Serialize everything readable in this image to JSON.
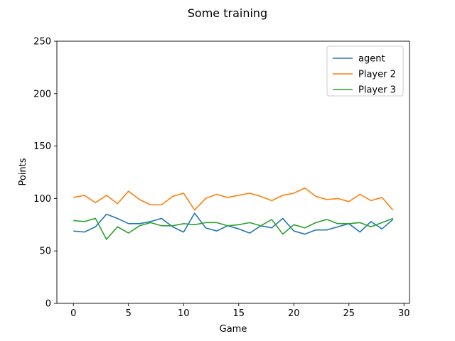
{
  "chart_data": {
    "type": "line",
    "title": "Some training",
    "xlabel": "Game",
    "ylabel": "Points",
    "x": [
      0,
      1,
      2,
      3,
      4,
      5,
      6,
      7,
      8,
      9,
      10,
      11,
      12,
      13,
      14,
      15,
      16,
      17,
      18,
      19,
      20,
      21,
      22,
      23,
      24,
      25,
      26,
      27,
      28,
      29
    ],
    "xlim": [
      -1.5,
      30.5
    ],
    "ylim": [
      0,
      250
    ],
    "xticks": [
      0,
      5,
      10,
      15,
      20,
      25,
      30
    ],
    "yticks": [
      0,
      50,
      100,
      150,
      200,
      250
    ],
    "grid": false,
    "legend_position": "top-right",
    "series": [
      {
        "name": "agent",
        "color": "#1f77b4",
        "values": [
          69,
          68,
          73,
          85,
          81,
          76,
          76,
          78,
          81,
          73,
          68,
          86,
          72,
          69,
          74,
          71,
          67,
          74,
          72,
          81,
          69,
          66,
          70,
          70,
          73,
          76,
          68,
          78,
          71,
          80
        ]
      },
      {
        "name": "Player 2",
        "color": "#ff7f0e",
        "values": [
          101,
          103,
          96,
          103,
          95,
          107,
          99,
          94,
          94,
          102,
          105,
          89,
          100,
          104,
          101,
          103,
          105,
          102,
          98,
          103,
          105,
          110,
          102,
          99,
          100,
          97,
          104,
          98,
          101,
          89
        ]
      },
      {
        "name": "Player 3",
        "color": "#2ca02c",
        "values": [
          79,
          78,
          81,
          61,
          73,
          67,
          74,
          77,
          74,
          74,
          76,
          75,
          77,
          77,
          74,
          75,
          77,
          74,
          80,
          66,
          75,
          72,
          77,
          80,
          76,
          76,
          77,
          73,
          77,
          81
        ]
      }
    ]
  }
}
